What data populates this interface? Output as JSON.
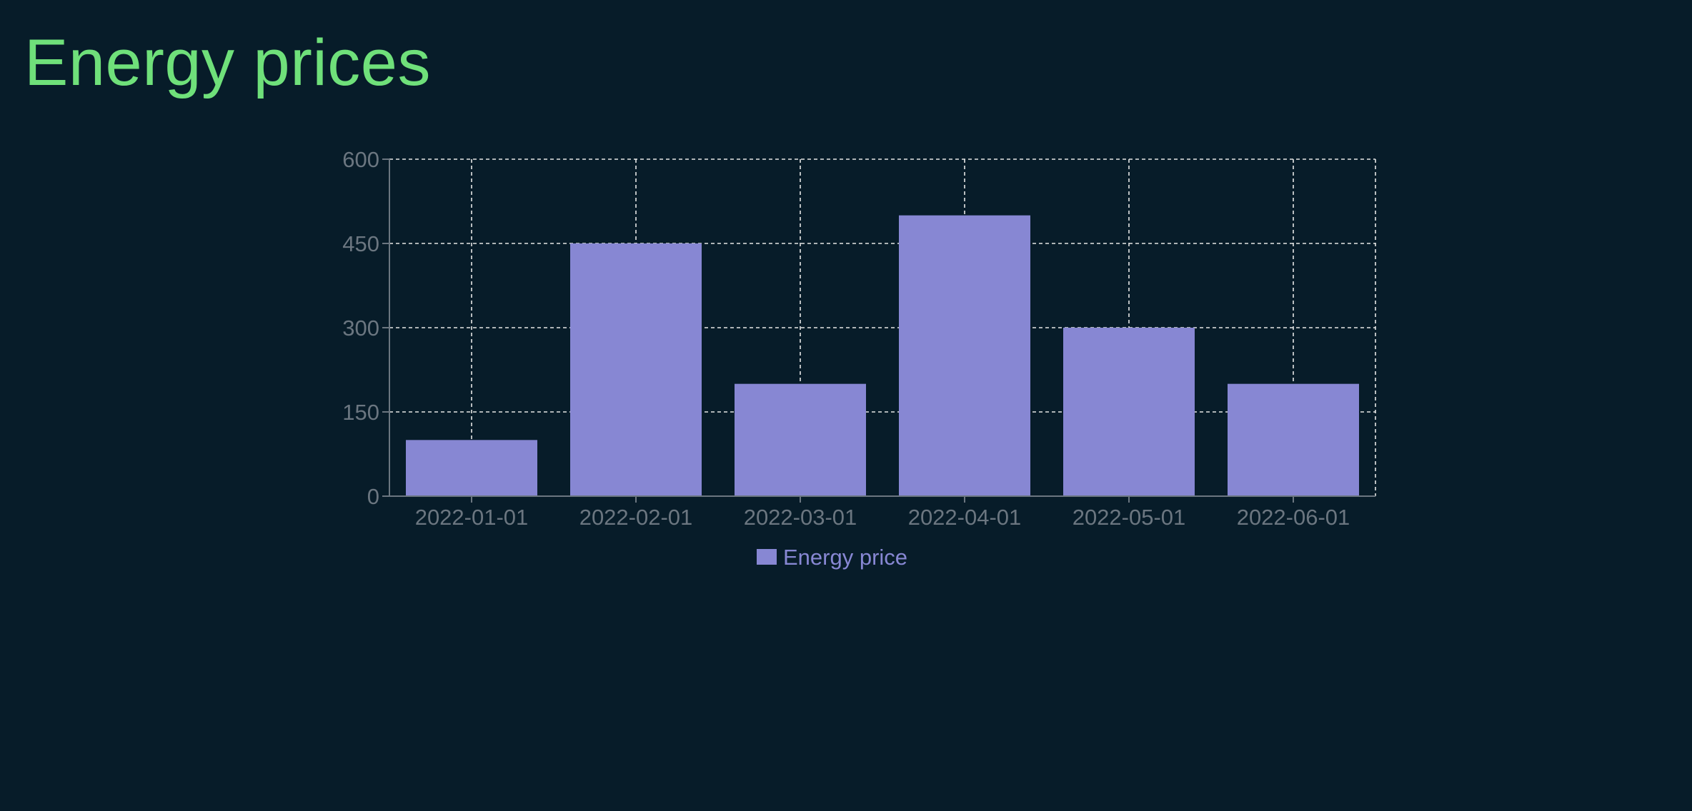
{
  "page": {
    "title": "Energy prices"
  },
  "colors": {
    "background": "#071c29",
    "title": "#6fe07a",
    "bar": "#8787d3",
    "grid": "#e6e6e6",
    "axis": "#6b7680",
    "tick_label": "#6b7680",
    "legend_text": "#8787d3"
  },
  "chart_data": {
    "type": "bar",
    "categories": [
      "2022-01-01",
      "2022-02-01",
      "2022-03-01",
      "2022-04-01",
      "2022-05-01",
      "2022-06-01"
    ],
    "series": [
      {
        "name": "Energy price",
        "values": [
          100,
          450,
          200,
          500,
          300,
          200
        ]
      }
    ],
    "ylim": [
      0,
      600
    ],
    "yticks": [
      0,
      150,
      300,
      450,
      600
    ],
    "grid": true,
    "grid_style": "dashed",
    "legend_position": "bottom-center"
  }
}
